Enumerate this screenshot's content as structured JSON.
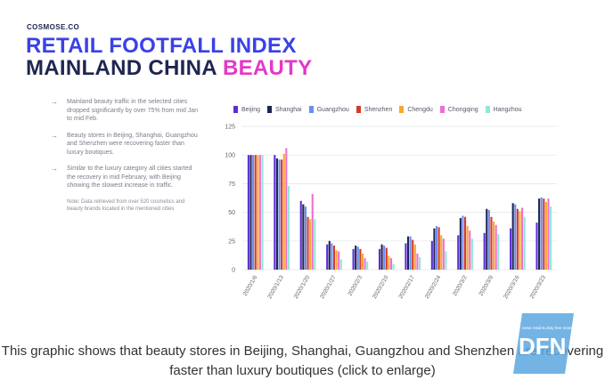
{
  "header": {
    "brand": "COSMOSE.CO",
    "title_line1": "RETAIL FOOTFALL INDEX",
    "title_line2_main": "MAINLAND CHINA",
    "title_line2_accent": "BEAUTY"
  },
  "bullets": [
    "Mainland beauty traffic in the selected cities dropped significantly by over 75% from mid Jan to mid Feb.",
    "Beauty stores in Beijing, Shanghai, Guangzhou and Shenzhen were recovering faster than luxury boutiques.",
    "Similar to the luxury category all cities started the recovery in mid February, with Beijing showing the slowest increase in traffic."
  ],
  "note": "Note: Data retrieved from over 520 cosmetics and beauty brands located in the mentioned cities",
  "caption": "This graphic shows that beauty stores in Beijing, Shanghai, Guangzhou and Shenzhen are recovering faster than luxury boutiques (click to enlarge)",
  "watermark": {
    "text": "DFN",
    "subtext": "news retail & duty free news"
  },
  "colors": {
    "brand_blue": "#3a42e6",
    "brand_navy": "#1f2550",
    "accent_pink": "#e23ac6"
  },
  "chart_data": {
    "type": "bar",
    "categories": [
      "2020/1/6",
      "2020/1/13",
      "2020/1/20",
      "2020/1/27",
      "2020/2/3",
      "2020/2/10",
      "2020/2/17",
      "2020/2/24",
      "2020/3/2",
      "2020/3/9",
      "2020/3/16",
      "2020/3/23"
    ],
    "ylim": [
      0,
      125
    ],
    "yticks": [
      0,
      25,
      50,
      75,
      100,
      125
    ],
    "grid": true,
    "legend": "top",
    "series": [
      {
        "name": "Beijing",
        "color": "#5b2fd6",
        "values": [
          100,
          100,
          60,
          22,
          18,
          18,
          23,
          25,
          30,
          32,
          36,
          41
        ]
      },
      {
        "name": "Shanghai",
        "color": "#1f2550",
        "values": [
          100,
          97,
          57,
          25,
          21,
          22,
          29,
          36,
          45,
          53,
          58,
          62
        ]
      },
      {
        "name": "Guangzhou",
        "color": "#6c8df0",
        "values": [
          100,
          96,
          55,
          23,
          20,
          21,
          29,
          38,
          47,
          52,
          57,
          63
        ]
      },
      {
        "name": "Shenzhen",
        "color": "#d63a2a",
        "values": [
          100,
          96,
          46,
          21,
          18,
          19,
          26,
          37,
          46,
          46,
          53,
          62
        ]
      },
      {
        "name": "Chengdu",
        "color": "#f6a92e",
        "values": [
          100,
          101,
          44,
          17,
          14,
          12,
          22,
          30,
          38,
          42,
          51,
          59
        ]
      },
      {
        "name": "Chongqing",
        "color": "#f06fd0",
        "values": [
          100,
          106,
          66,
          16,
          10,
          10,
          14,
          27,
          34,
          39,
          54,
          62
        ]
      },
      {
        "name": "Hangzhou",
        "color": "#8fe8d8",
        "values": [
          100,
          73,
          44,
          9,
          7,
          5,
          11,
          16,
          27,
          31,
          46,
          55
        ]
      }
    ]
  }
}
